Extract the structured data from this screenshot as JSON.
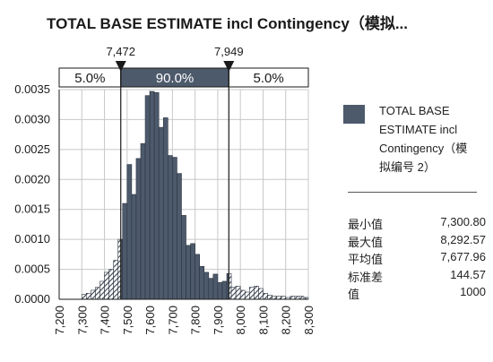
{
  "title": "TOTAL BASE ESTIMATE incl Contingency（模拟...",
  "colors": {
    "bar": "#4d5a6c",
    "bar_stroke": "#2b333f",
    "hatch": "#3b4350",
    "text": "#1a1a1a"
  },
  "chart_data": {
    "type": "bar",
    "series_name": "TOTAL BASE ESTIMATE incl Contingency（模拟编号 2）",
    "x_range": [
      7200,
      8300
    ],
    "bin_width": 20,
    "ylim": [
      0,
      0.0035
    ],
    "y_ticks": [
      "0.0000",
      "0.0005",
      "0.0010",
      "0.0015",
      "0.0020",
      "0.0025",
      "0.0030",
      "0.0035"
    ],
    "x_ticks": [
      "7,200",
      "7,300",
      "7,400",
      "7,500",
      "7,600",
      "7,700",
      "7,800",
      "7,900",
      "8,000",
      "8,100",
      "8,200",
      "8,300"
    ],
    "bins": [
      {
        "x0": 7300,
        "y": 8e-05
      },
      {
        "x0": 7320,
        "y": 0.0001
      },
      {
        "x0": 7340,
        "y": 0.00015
      },
      {
        "x0": 7360,
        "y": 0.0002
      },
      {
        "x0": 7380,
        "y": 0.0003
      },
      {
        "x0": 7400,
        "y": 0.00045
      },
      {
        "x0": 7420,
        "y": 0.0005
      },
      {
        "x0": 7440,
        "y": 0.00065
      },
      {
        "x0": 7460,
        "y": 0.001
      },
      {
        "x0": 7480,
        "y": 0.0016
      },
      {
        "x0": 7500,
        "y": 0.00225
      },
      {
        "x0": 7520,
        "y": 0.00175
      },
      {
        "x0": 7540,
        "y": 0.00235
      },
      {
        "x0": 7560,
        "y": 0.0026
      },
      {
        "x0": 7580,
        "y": 0.0034
      },
      {
        "x0": 7600,
        "y": 0.00347
      },
      {
        "x0": 7620,
        "y": 0.00345
      },
      {
        "x0": 7640,
        "y": 0.00287
      },
      {
        "x0": 7660,
        "y": 0.00303
      },
      {
        "x0": 7680,
        "y": 0.0024
      },
      {
        "x0": 7700,
        "y": 0.00237
      },
      {
        "x0": 7720,
        "y": 0.0021
      },
      {
        "x0": 7740,
        "y": 0.0014
      },
      {
        "x0": 7760,
        "y": 0.0009
      },
      {
        "x0": 7780,
        "y": 0.00093
      },
      {
        "x0": 7800,
        "y": 0.00075
      },
      {
        "x0": 7820,
        "y": 0.00055
      },
      {
        "x0": 7840,
        "y": 0.00045
      },
      {
        "x0": 7860,
        "y": 0.00035
      },
      {
        "x0": 7880,
        "y": 0.00042
      },
      {
        "x0": 7900,
        "y": 0.00028
      },
      {
        "x0": 7920,
        "y": 0.0003
      },
      {
        "x0": 7940,
        "y": 0.00043
      },
      {
        "x0": 7960,
        "y": 0.0002
      },
      {
        "x0": 7980,
        "y": 0.00022
      },
      {
        "x0": 8000,
        "y": 0.00015
      },
      {
        "x0": 8020,
        "y": 0.00012
      },
      {
        "x0": 8040,
        "y": 0.0002
      },
      {
        "x0": 8060,
        "y": 0.00022
      },
      {
        "x0": 8080,
        "y": 0.00018
      },
      {
        "x0": 8100,
        "y": 0.0001
      },
      {
        "x0": 8120,
        "y": 7e-05
      },
      {
        "x0": 8140,
        "y": 5e-05
      },
      {
        "x0": 8160,
        "y": 5e-05
      },
      {
        "x0": 8180,
        "y": 5e-05
      },
      {
        "x0": 8200,
        "y": 3e-05
      },
      {
        "x0": 8220,
        "y": 5e-05
      },
      {
        "x0": 8240,
        "y": 5e-05
      },
      {
        "x0": 8260,
        "y": 5e-05
      },
      {
        "x0": 8280,
        "y": 3e-05
      }
    ],
    "confidence": {
      "lower": 7472,
      "upper": 7949,
      "lower_label": "7,472",
      "upper_label": "7,949",
      "left_pct": "5.0%",
      "mid_pct": "90.0%",
      "right_pct": "5.0%"
    },
    "legend": {
      "label": "TOTAL BASE ESTIMATE incl Contingency（模拟编号 2）",
      "placement": "right"
    },
    "statistics": [
      {
        "label": "最小值",
        "value": "7,300.80"
      },
      {
        "label": "最大值",
        "value": "8,292.57"
      },
      {
        "label": "平均值",
        "value": "7,677.96"
      },
      {
        "label": "标准差",
        "value": "144.57"
      },
      {
        "label": "值",
        "value": "1000"
      }
    ]
  }
}
